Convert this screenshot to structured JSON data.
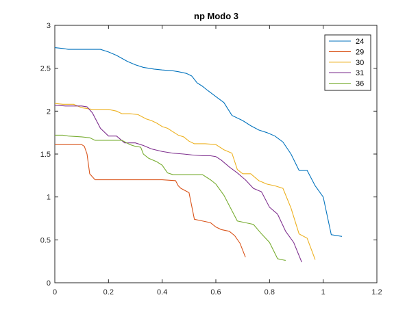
{
  "chart_data": {
    "type": "line",
    "title": "np Modo 3",
    "xlabel": "",
    "ylabel": "",
    "xlim": [
      0,
      1.2
    ],
    "ylim": [
      0,
      3
    ],
    "xticks": [
      0,
      0.2,
      0.4,
      0.6,
      0.8,
      1,
      1.2
    ],
    "yticks": [
      0,
      0.5,
      1,
      1.5,
      2,
      2.5,
      3
    ],
    "grid": false,
    "legend_position": "top-right",
    "series": [
      {
        "name": "24",
        "color": "#0072BD",
        "points": [
          [
            0,
            2.74
          ],
          [
            0.03,
            2.73
          ],
          [
            0.05,
            2.72
          ],
          [
            0.1,
            2.72
          ],
          [
            0.17,
            2.72
          ],
          [
            0.2,
            2.69
          ],
          [
            0.23,
            2.65
          ],
          [
            0.27,
            2.58
          ],
          [
            0.3,
            2.54
          ],
          [
            0.33,
            2.51
          ],
          [
            0.37,
            2.49
          ],
          [
            0.4,
            2.48
          ],
          [
            0.44,
            2.47
          ],
          [
            0.46,
            2.46
          ],
          [
            0.49,
            2.44
          ],
          [
            0.51,
            2.41
          ],
          [
            0.53,
            2.33
          ],
          [
            0.55,
            2.29
          ],
          [
            0.57,
            2.24
          ],
          [
            0.6,
            2.17
          ],
          [
            0.63,
            2.1
          ],
          [
            0.66,
            1.95
          ],
          [
            0.7,
            1.89
          ],
          [
            0.73,
            1.83
          ],
          [
            0.76,
            1.78
          ],
          [
            0.79,
            1.75
          ],
          [
            0.82,
            1.71
          ],
          [
            0.85,
            1.64
          ],
          [
            0.88,
            1.5
          ],
          [
            0.91,
            1.31
          ],
          [
            0.94,
            1.31
          ],
          [
            0.97,
            1.13
          ],
          [
            1.0,
            1.0
          ],
          [
            1.03,
            0.56
          ],
          [
            1.07,
            0.54
          ]
        ]
      },
      {
        "name": "29",
        "color": "#D95319",
        "points": [
          [
            0,
            1.61
          ],
          [
            0.05,
            1.61
          ],
          [
            0.1,
            1.61
          ],
          [
            0.11,
            1.59
          ],
          [
            0.12,
            1.5
          ],
          [
            0.13,
            1.27
          ],
          [
            0.15,
            1.2
          ],
          [
            0.2,
            1.2
          ],
          [
            0.3,
            1.2
          ],
          [
            0.4,
            1.2
          ],
          [
            0.45,
            1.19
          ],
          [
            0.46,
            1.13
          ],
          [
            0.47,
            1.1
          ],
          [
            0.5,
            1.05
          ],
          [
            0.52,
            0.74
          ],
          [
            0.55,
            0.72
          ],
          [
            0.58,
            0.7
          ],
          [
            0.6,
            0.65
          ],
          [
            0.62,
            0.62
          ],
          [
            0.65,
            0.6
          ],
          [
            0.67,
            0.55
          ],
          [
            0.69,
            0.46
          ],
          [
            0.71,
            0.3
          ]
        ]
      },
      {
        "name": "30",
        "color": "#EDB120",
        "points": [
          [
            0,
            2.09
          ],
          [
            0.03,
            2.08
          ],
          [
            0.07,
            2.08
          ],
          [
            0.1,
            2.04
          ],
          [
            0.14,
            2.02
          ],
          [
            0.17,
            2.02
          ],
          [
            0.2,
            2.02
          ],
          [
            0.23,
            2.0
          ],
          [
            0.25,
            1.97
          ],
          [
            0.28,
            1.97
          ],
          [
            0.31,
            1.96
          ],
          [
            0.34,
            1.91
          ],
          [
            0.36,
            1.89
          ],
          [
            0.38,
            1.86
          ],
          [
            0.4,
            1.82
          ],
          [
            0.42,
            1.8
          ],
          [
            0.44,
            1.76
          ],
          [
            0.46,
            1.72
          ],
          [
            0.48,
            1.7
          ],
          [
            0.5,
            1.65
          ],
          [
            0.52,
            1.62
          ],
          [
            0.56,
            1.62
          ],
          [
            0.6,
            1.61
          ],
          [
            0.63,
            1.55
          ],
          [
            0.66,
            1.51
          ],
          [
            0.68,
            1.32
          ],
          [
            0.7,
            1.27
          ],
          [
            0.73,
            1.27
          ],
          [
            0.76,
            1.19
          ],
          [
            0.79,
            1.15
          ],
          [
            0.82,
            1.13
          ],
          [
            0.85,
            1.1
          ],
          [
            0.88,
            0.87
          ],
          [
            0.91,
            0.57
          ],
          [
            0.94,
            0.52
          ],
          [
            0.97,
            0.27
          ]
        ]
      },
      {
        "name": "31",
        "color": "#7E2F8E",
        "points": [
          [
            0,
            2.07
          ],
          [
            0.04,
            2.06
          ],
          [
            0.07,
            2.06
          ],
          [
            0.1,
            2.06
          ],
          [
            0.12,
            2.05
          ],
          [
            0.14,
            1.98
          ],
          [
            0.17,
            1.8
          ],
          [
            0.2,
            1.71
          ],
          [
            0.23,
            1.71
          ],
          [
            0.26,
            1.63
          ],
          [
            0.3,
            1.63
          ],
          [
            0.33,
            1.6
          ],
          [
            0.36,
            1.56
          ],
          [
            0.4,
            1.53
          ],
          [
            0.44,
            1.51
          ],
          [
            0.48,
            1.5
          ],
          [
            0.51,
            1.49
          ],
          [
            0.55,
            1.48
          ],
          [
            0.58,
            1.48
          ],
          [
            0.6,
            1.47
          ],
          [
            0.62,
            1.43
          ],
          [
            0.65,
            1.35
          ],
          [
            0.68,
            1.28
          ],
          [
            0.71,
            1.2
          ],
          [
            0.74,
            1.1
          ],
          [
            0.77,
            1.06
          ],
          [
            0.8,
            0.88
          ],
          [
            0.83,
            0.8
          ],
          [
            0.86,
            0.6
          ],
          [
            0.89,
            0.47
          ],
          [
            0.92,
            0.24
          ]
        ]
      },
      {
        "name": "36",
        "color": "#77AC30",
        "points": [
          [
            0,
            1.72
          ],
          [
            0.03,
            1.72
          ],
          [
            0.05,
            1.71
          ],
          [
            0.1,
            1.7
          ],
          [
            0.13,
            1.69
          ],
          [
            0.15,
            1.66
          ],
          [
            0.2,
            1.66
          ],
          [
            0.25,
            1.66
          ],
          [
            0.28,
            1.61
          ],
          [
            0.3,
            1.59
          ],
          [
            0.32,
            1.58
          ],
          [
            0.33,
            1.5
          ],
          [
            0.35,
            1.45
          ],
          [
            0.38,
            1.41
          ],
          [
            0.4,
            1.37
          ],
          [
            0.42,
            1.28
          ],
          [
            0.44,
            1.26
          ],
          [
            0.5,
            1.26
          ],
          [
            0.55,
            1.26
          ],
          [
            0.58,
            1.2
          ],
          [
            0.6,
            1.15
          ],
          [
            0.63,
            1.02
          ],
          [
            0.66,
            0.84
          ],
          [
            0.68,
            0.72
          ],
          [
            0.71,
            0.7
          ],
          [
            0.74,
            0.68
          ],
          [
            0.77,
            0.57
          ],
          [
            0.8,
            0.47
          ],
          [
            0.83,
            0.28
          ],
          [
            0.86,
            0.26
          ]
        ]
      }
    ]
  }
}
